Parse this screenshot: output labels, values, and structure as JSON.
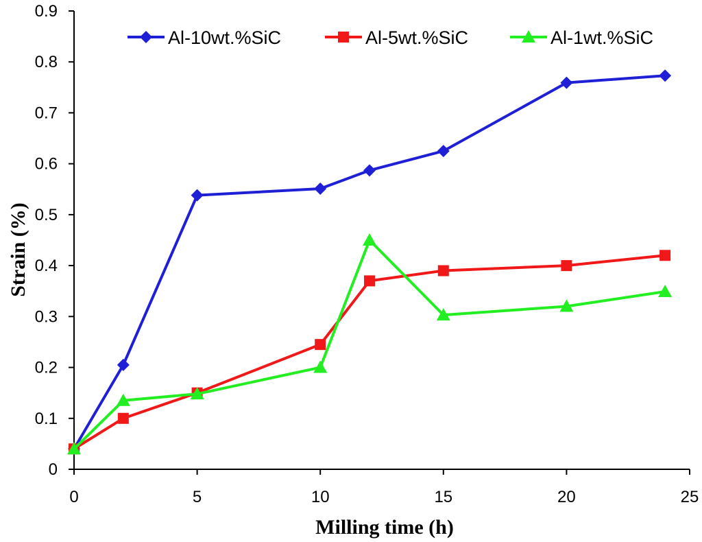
{
  "chart_data": {
    "type": "line",
    "title": "",
    "xlabel": "Milling time (h)",
    "ylabel": "Strain (%)",
    "xlim": [
      0,
      25
    ],
    "ylim": [
      0,
      0.9
    ],
    "x_ticks": [
      0,
      5,
      10,
      15,
      20,
      25
    ],
    "x_tick_labels": [
      "0",
      "5",
      "10",
      "15",
      "20",
      "25"
    ],
    "y_ticks": [
      0,
      0.1,
      0.2,
      0.3,
      0.4,
      0.5,
      0.6,
      0.7,
      0.8,
      0.9
    ],
    "y_tick_labels": [
      "0",
      "0.1",
      "0.2",
      "0.3",
      "0.4",
      "0.5",
      "0.6",
      "0.7",
      "0.8",
      "0.9"
    ],
    "grid": false,
    "legend_position": "top",
    "series": [
      {
        "name": "Al-10wt.%SiC",
        "color": "#1f1fd6",
        "marker": "diamond",
        "x": [
          0,
          2,
          5,
          10,
          12,
          15,
          20,
          24
        ],
        "values": [
          0.04,
          0.205,
          0.538,
          0.551,
          0.587,
          0.625,
          0.759,
          0.773
        ]
      },
      {
        "name": "Al-5wt.%SiC",
        "color": "#f01818",
        "marker": "square",
        "x": [
          0,
          2,
          5,
          10,
          12,
          15,
          20,
          24
        ],
        "values": [
          0.04,
          0.1,
          0.15,
          0.245,
          0.37,
          0.39,
          0.4,
          0.42
        ]
      },
      {
        "name": "Al-1wt.%SiC",
        "color": "#22ee22",
        "marker": "triangle",
        "x": [
          0,
          2,
          5,
          10,
          12,
          15,
          20,
          24
        ],
        "values": [
          0.04,
          0.135,
          0.148,
          0.2,
          0.45,
          0.303,
          0.32,
          0.349
        ]
      }
    ]
  }
}
